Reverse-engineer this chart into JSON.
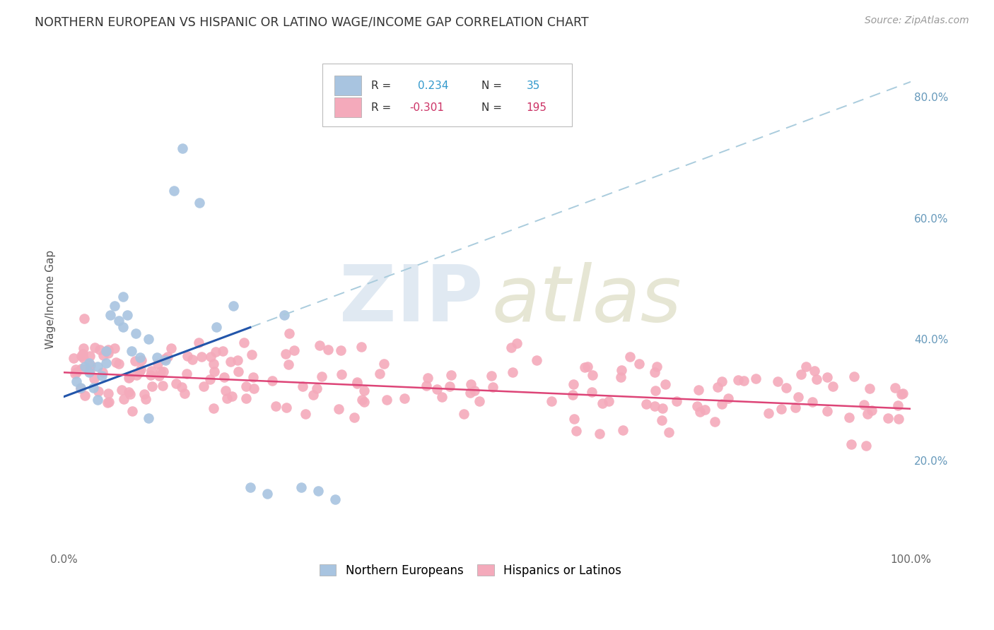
{
  "title": "NORTHERN EUROPEAN VS HISPANIC OR LATINO WAGE/INCOME GAP CORRELATION CHART",
  "source": "Source: ZipAtlas.com",
  "ylabel": "Wage/Income Gap",
  "blue_color": "#A8C4E0",
  "pink_color": "#F4AABB",
  "blue_line_color": "#2255AA",
  "pink_line_color": "#DD4477",
  "blue_dash_color": "#AACCDD",
  "legend_label_blue": "Northern Europeans",
  "legend_label_pink": "Hispanics or Latinos",
  "blue_R": "0.234",
  "blue_N": "35",
  "pink_R": "-0.301",
  "pink_N": "195",
  "blue_R_color": "#3399CC",
  "blue_N_color": "#3399CC",
  "pink_R_color": "#CC3366",
  "pink_N_color": "#CC3366",
  "watermark_zip_color": "#C5D8EA",
  "watermark_atlas_color": "#C8C89A",
  "bg_color": "#FFFFFF",
  "grid_color": "#DDDDDD",
  "right_tick_color": "#6699BB",
  "title_color": "#333333",
  "source_color": "#999999",
  "ylabel_color": "#555555"
}
